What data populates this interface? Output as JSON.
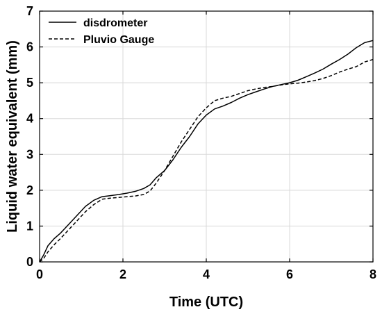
{
  "chart_data": {
    "type": "line",
    "title": "",
    "xlabel": "Time  (UTC)",
    "ylabel": "Liquid water equivalent  (mm)",
    "xlim": [
      0,
      8
    ],
    "ylim": [
      0,
      7
    ],
    "xticks": [
      0,
      2,
      4,
      6,
      8
    ],
    "yticks": [
      0,
      1,
      2,
      3,
      4,
      5,
      6,
      7
    ],
    "grid": true,
    "legend_position": "top-left",
    "series": [
      {
        "name": "disdrometer",
        "style": "solid",
        "color": "#000000",
        "x": [
          0,
          0.1,
          0.2,
          0.35,
          0.5,
          0.7,
          0.9,
          1.1,
          1.3,
          1.5,
          1.7,
          1.9,
          2.1,
          2.3,
          2.5,
          2.65,
          2.8,
          3.0,
          3.2,
          3.4,
          3.6,
          3.8,
          4.0,
          4.2,
          4.4,
          4.6,
          4.8,
          5.0,
          5.2,
          5.4,
          5.6,
          5.8,
          6.0,
          6.2,
          6.4,
          6.6,
          6.8,
          7.0,
          7.2,
          7.4,
          7.6,
          7.8,
          8.0
        ],
        "y": [
          0,
          0.2,
          0.45,
          0.65,
          0.8,
          1.05,
          1.3,
          1.55,
          1.72,
          1.82,
          1.85,
          1.88,
          1.92,
          1.97,
          2.05,
          2.15,
          2.35,
          2.55,
          2.85,
          3.2,
          3.5,
          3.85,
          4.1,
          4.27,
          4.35,
          4.45,
          4.57,
          4.67,
          4.75,
          4.83,
          4.9,
          4.95,
          5.0,
          5.07,
          5.17,
          5.27,
          5.38,
          5.52,
          5.65,
          5.8,
          5.98,
          6.12,
          6.18
        ]
      },
      {
        "name": "Pluvio Gauge",
        "style": "dashed",
        "color": "#000000",
        "x": [
          0,
          0.1,
          0.2,
          0.35,
          0.5,
          0.7,
          0.9,
          1.1,
          1.3,
          1.5,
          1.7,
          1.9,
          2.1,
          2.3,
          2.5,
          2.65,
          2.8,
          3.0,
          3.2,
          3.4,
          3.6,
          3.8,
          4.0,
          4.2,
          4.4,
          4.6,
          4.8,
          5.0,
          5.2,
          5.4,
          5.6,
          5.8,
          6.0,
          6.2,
          6.4,
          6.6,
          6.8,
          7.0,
          7.2,
          7.4,
          7.6,
          7.8,
          8.0
        ],
        "y": [
          0,
          0.1,
          0.28,
          0.48,
          0.65,
          0.9,
          1.15,
          1.4,
          1.6,
          1.75,
          1.78,
          1.8,
          1.82,
          1.84,
          1.88,
          1.98,
          2.2,
          2.55,
          2.95,
          3.35,
          3.7,
          4.05,
          4.3,
          4.5,
          4.57,
          4.62,
          4.7,
          4.78,
          4.83,
          4.87,
          4.9,
          4.94,
          4.97,
          4.99,
          5.02,
          5.06,
          5.12,
          5.2,
          5.3,
          5.38,
          5.45,
          5.58,
          5.65
        ]
      }
    ]
  }
}
